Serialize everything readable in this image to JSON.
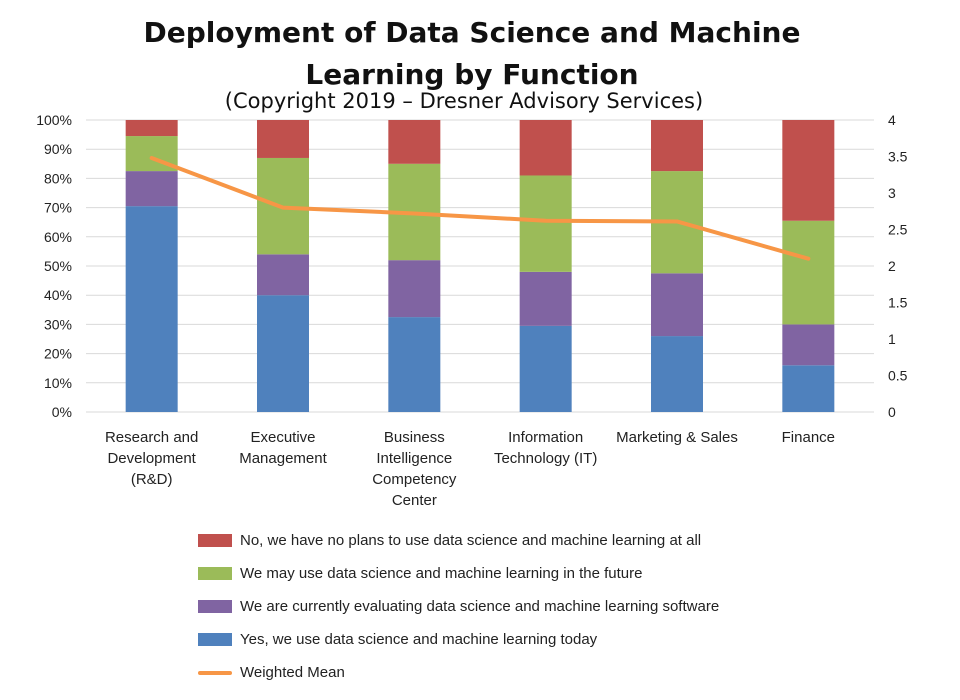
{
  "title_lines": [
    "Deployment of Data Science and Machine",
    "Learning by Function"
  ],
  "subtitle": "(Copyright 2019 – Dresner Advisory Services)",
  "chart_data": {
    "type": "stacked-bar-with-line",
    "title": "Deployment of Data Science and Machine Learning by Function",
    "subtitle": "(Copyright 2019 – Dresner Advisory Services)",
    "categories": [
      [
        "Research and",
        "Development",
        "(R&D)"
      ],
      [
        "Executive",
        "Management"
      ],
      [
        "Business",
        "Intelligence",
        "Competency",
        "Center"
      ],
      [
        "Information",
        "Technology (IT)"
      ],
      [
        "Marketing & Sales"
      ],
      [
        "Finance"
      ]
    ],
    "y_left": {
      "min": 0,
      "max": 100,
      "step": 10,
      "suffix": "%"
    },
    "y_right": {
      "min": 0,
      "max": 4,
      "step": 0.5
    },
    "series": [
      {
        "name": "Yes, we use data science and machine learning today",
        "color": "#4f81bd",
        "values": [
          70.5,
          40,
          32.5,
          29.5,
          26,
          16
        ]
      },
      {
        "name": "We are currently evaluating data science and machine learning software",
        "color": "#8064a2",
        "values": [
          12,
          14,
          19.5,
          18.5,
          21.5,
          14
        ]
      },
      {
        "name": "We may use data science and machine learning in the future",
        "color": "#9bbb59",
        "values": [
          12,
          33,
          33,
          33,
          35,
          35.5
        ]
      },
      {
        "name": "No, we have no plans to use data science and machine learning at all",
        "color": "#c0504d",
        "values": [
          5.5,
          13,
          15,
          19,
          17.5,
          34.5
        ]
      }
    ],
    "line": {
      "name": "Weighted Mean",
      "color": "#f79646",
      "values": [
        3.48,
        2.8,
        2.72,
        2.62,
        2.61,
        2.1
      ]
    },
    "legend_order": [
      3,
      2,
      1,
      0
    ]
  }
}
